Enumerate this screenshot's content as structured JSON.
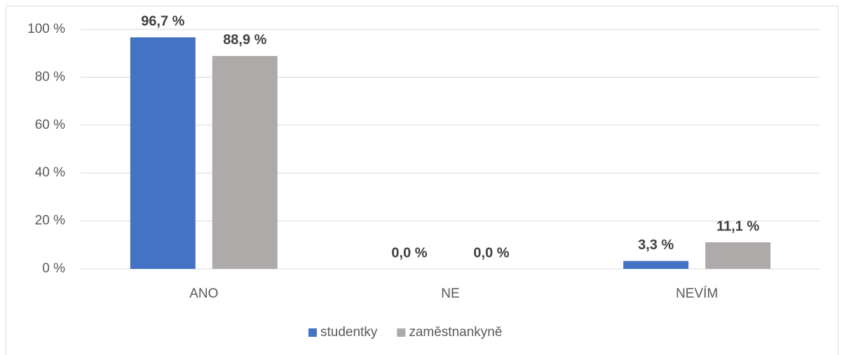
{
  "chart_data": {
    "type": "bar",
    "categories": [
      "ANO",
      "NE",
      "NEVÍM"
    ],
    "series": [
      {
        "name": "studentky",
        "color": "#4472c4",
        "values": [
          96.7,
          0,
          3.3
        ],
        "value_labels": [
          "96,7 %",
          "0,0 %",
          "3,3 %"
        ]
      },
      {
        "name": "zaměstnankyně",
        "color": "#aeaaaa",
        "values": [
          88.9,
          0,
          11.1
        ],
        "value_labels": [
          "88,9 %",
          "0,0 %",
          "11,1 %"
        ]
      }
    ],
    "ylim": [
      0,
      100
    ],
    "yticks": [
      {
        "value": 0,
        "label": "0 %"
      },
      {
        "value": 20,
        "label": "20 %"
      },
      {
        "value": 40,
        "label": "40 %"
      },
      {
        "value": 60,
        "label": "60 %"
      },
      {
        "value": 80,
        "label": "80 %"
      },
      {
        "value": 100,
        "label": "100 %"
      }
    ],
    "grid": true,
    "legend": "bottom"
  }
}
